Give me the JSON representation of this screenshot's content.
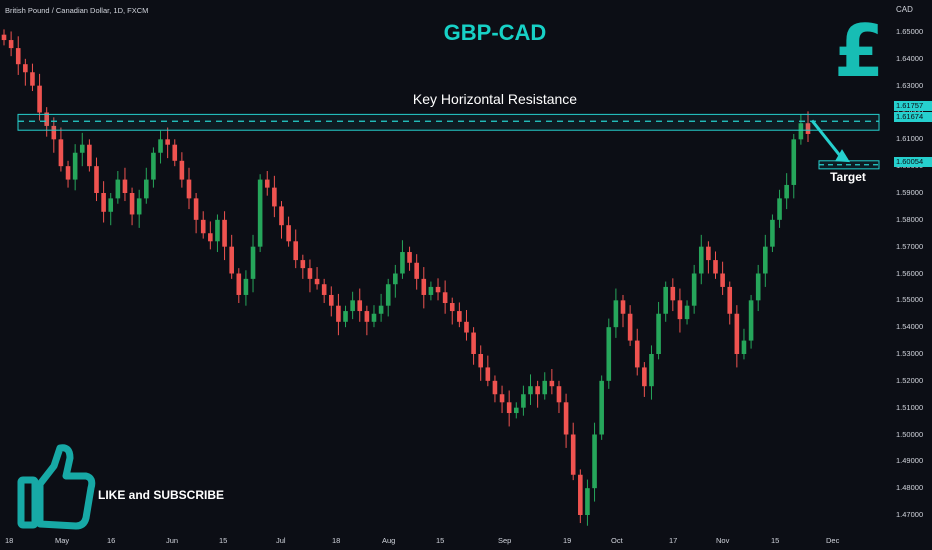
{
  "header": {
    "symbol_line": "British Pound / Canadian Dollar, 1D, FXCM",
    "title": "GBP-CAD",
    "currency": "CAD"
  },
  "annotations": {
    "resistance_label": "Key Horizontal Resistance",
    "target_label": "Target",
    "cta": "LIKE and SUBSCRIBE"
  },
  "colors": {
    "background": "#0c0e15",
    "bull": "#26a65b",
    "bear": "#ef5350",
    "accent": "#17d1c6",
    "resistance_box": "#26d0ce"
  },
  "icons": {
    "currency_icon": "pound-sign-icon",
    "cta_icon": "thumbs-up-icon"
  },
  "price_tags": [
    {
      "value": "1.61757"
    },
    {
      "value": "1.61674"
    },
    {
      "value": "1.60054"
    }
  ],
  "chart_data": {
    "type": "candlestick",
    "title": "GBP-CAD",
    "ylabel": "CAD",
    "ylim": [
      1.4633,
      1.6545
    ],
    "grid": false,
    "x_ticks": [
      "18",
      "May",
      "16",
      "Jun",
      "15",
      "Jul",
      "18",
      "Aug",
      "15",
      "Sep",
      "19",
      "Oct",
      "17",
      "Nov",
      "15",
      "Dec"
    ],
    "y_ticks": [
      "1.65000",
      "1.64000",
      "1.63000",
      "1.62000",
      "1.61000",
      "1.60000",
      "1.59000",
      "1.58000",
      "1.57000",
      "1.56000",
      "1.55000",
      "1.54000",
      "1.53000",
      "1.52000",
      "1.51000",
      "1.50000",
      "1.49000",
      "1.48000",
      "1.47000"
    ],
    "resistance_zone": [
      1.6134,
      1.6193
    ],
    "resistance_line": 1.61674,
    "resistance_high": 1.61757,
    "target_zone": [
      1.599,
      1.602
    ],
    "target": 1.60054,
    "close_path": [
      1.647,
      1.644,
      1.638,
      1.635,
      1.63,
      1.62,
      1.615,
      1.61,
      1.6,
      1.595,
      1.605,
      1.608,
      1.6,
      1.59,
      1.583,
      1.588,
      1.595,
      1.59,
      1.582,
      1.588,
      1.595,
      1.605,
      1.61,
      1.608,
      1.602,
      1.595,
      1.588,
      1.58,
      1.575,
      1.572,
      1.58,
      1.57,
      1.56,
      1.552,
      1.558,
      1.57,
      1.595,
      1.592,
      1.585,
      1.578,
      1.572,
      1.565,
      1.562,
      1.558,
      1.556,
      1.552,
      1.548,
      1.542,
      1.546,
      1.55,
      1.546,
      1.542,
      1.545,
      1.548,
      1.556,
      1.56,
      1.568,
      1.564,
      1.558,
      1.552,
      1.555,
      1.553,
      1.549,
      1.546,
      1.542,
      1.538,
      1.53,
      1.525,
      1.52,
      1.515,
      1.512,
      1.508,
      1.51,
      1.515,
      1.518,
      1.515,
      1.52,
      1.518,
      1.512,
      1.5,
      1.485,
      1.47,
      1.48,
      1.5,
      1.52,
      1.54,
      1.55,
      1.545,
      1.535,
      1.525,
      1.518,
      1.53,
      1.545,
      1.555,
      1.55,
      1.543,
      1.548,
      1.56,
      1.57,
      1.565,
      1.56,
      1.555,
      1.545,
      1.53,
      1.535,
      1.55,
      1.56,
      1.57,
      1.58,
      1.588,
      1.593,
      1.61,
      1.616,
      1.612
    ]
  }
}
